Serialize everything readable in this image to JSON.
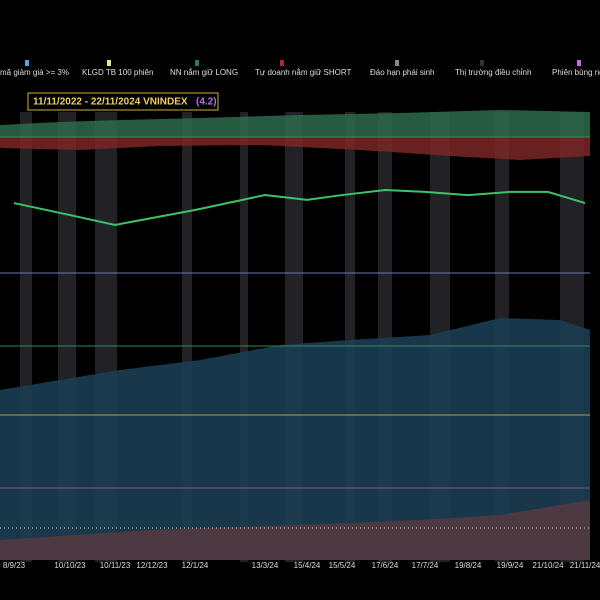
{
  "chart_data": {
    "type": "line",
    "title": "11/11/2022 - 22/11/2024  VNINDEX",
    "annotation": "(4.2)",
    "legend": [
      "mã giảm giá >= 3%",
      "KLGD TB 100 phiên",
      "NN nắm giữ LONG",
      "Tự doanh nắm giữ SHORT",
      "Đáo hạn phái sinh",
      "Thị trường điều chỉnh",
      "Phiên bùng nổ"
    ],
    "categories": [
      "8/9/23",
      "10/10/23",
      "10/11/23",
      "12/12/23",
      "12/1/24",
      "13/3/24",
      "15/4/24",
      "15/5/24",
      "17/6/24",
      "17/7/24",
      "19/8/24",
      "19/9/24",
      "21/10/24",
      "21/11/24"
    ],
    "series": [
      {
        "name": "VNINDEX",
        "color": "#3cc36a",
        "values": [
          1176,
          1131,
          1094,
          1120,
          1150,
          1206,
          1188,
          1206,
          1225,
          1218,
          1206,
          1218,
          1218,
          1176
        ]
      }
    ],
    "ylim": [
      1000,
      1300
    ]
  }
}
